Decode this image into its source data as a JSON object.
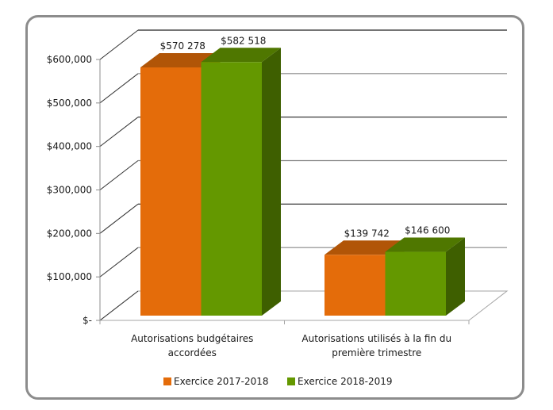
{
  "chart_data": {
    "type": "bar",
    "style": "3d-clustered-column",
    "title": "",
    "xlabel": "",
    "ylabel": "",
    "ylim": [
      0,
      600000
    ],
    "yticks": [
      0,
      100000,
      200000,
      300000,
      400000,
      500000,
      600000
    ],
    "ytick_labels": [
      "$-",
      "$100,000",
      "$200,000",
      "$300,000",
      "$400,000",
      "$500,000",
      "$600,000"
    ],
    "grid": true,
    "legend_position": "bottom",
    "categories": [
      [
        "Autorisations budgétaires",
        "accordées"
      ],
      [
        "Autorisations utilisés à la fin du",
        "première trimestre"
      ]
    ],
    "series": [
      {
        "name": "Exercice 2017-2018",
        "color": "#e46c0a",
        "top_color": "#b15507",
        "side_color": "#b15507",
        "values": [
          570278,
          139742
        ],
        "labels": [
          "$570 278",
          "$139 742"
        ]
      },
      {
        "name": "Exercice 2018-2019",
        "color": "#649800",
        "top_color": "#4f7700",
        "side_color": "#3e5f00",
        "values": [
          582518,
          146600
        ],
        "labels": [
          "$582 518",
          "$146 600"
        ]
      }
    ]
  }
}
